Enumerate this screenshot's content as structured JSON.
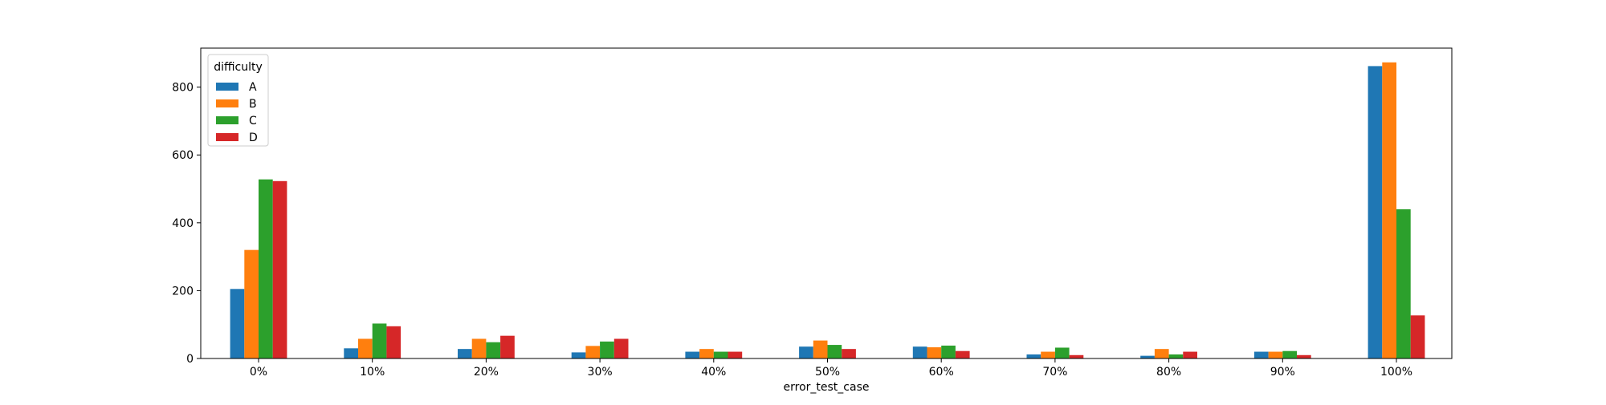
{
  "chart_data": {
    "type": "bar",
    "title": "",
    "xlabel": "error_test_case",
    "ylabel": "",
    "categories": [
      "0%",
      "10%",
      "20%",
      "30%",
      "40%",
      "50%",
      "60%",
      "70%",
      "80%",
      "90%",
      "100%"
    ],
    "ylim": [
      0,
      915
    ],
    "yticks": [
      0,
      200,
      400,
      600,
      800
    ],
    "grid": false,
    "legend": {
      "title": "difficulty",
      "placement": "top-left"
    },
    "series": [
      {
        "name": "A",
        "color": "#1f77b4",
        "values": [
          205,
          30,
          28,
          18,
          20,
          35,
          35,
          12,
          8,
          20,
          862
        ]
      },
      {
        "name": "B",
        "color": "#ff7f0e",
        "values": [
          320,
          58,
          58,
          37,
          28,
          53,
          33,
          20,
          28,
          20,
          873
        ]
      },
      {
        "name": "C",
        "color": "#2ca02c",
        "values": [
          528,
          103,
          48,
          50,
          20,
          40,
          38,
          32,
          12,
          22,
          440
        ]
      },
      {
        "name": "D",
        "color": "#d62728",
        "values": [
          523,
          95,
          67,
          58,
          20,
          28,
          22,
          10,
          20,
          10,
          127
        ]
      }
    ]
  }
}
